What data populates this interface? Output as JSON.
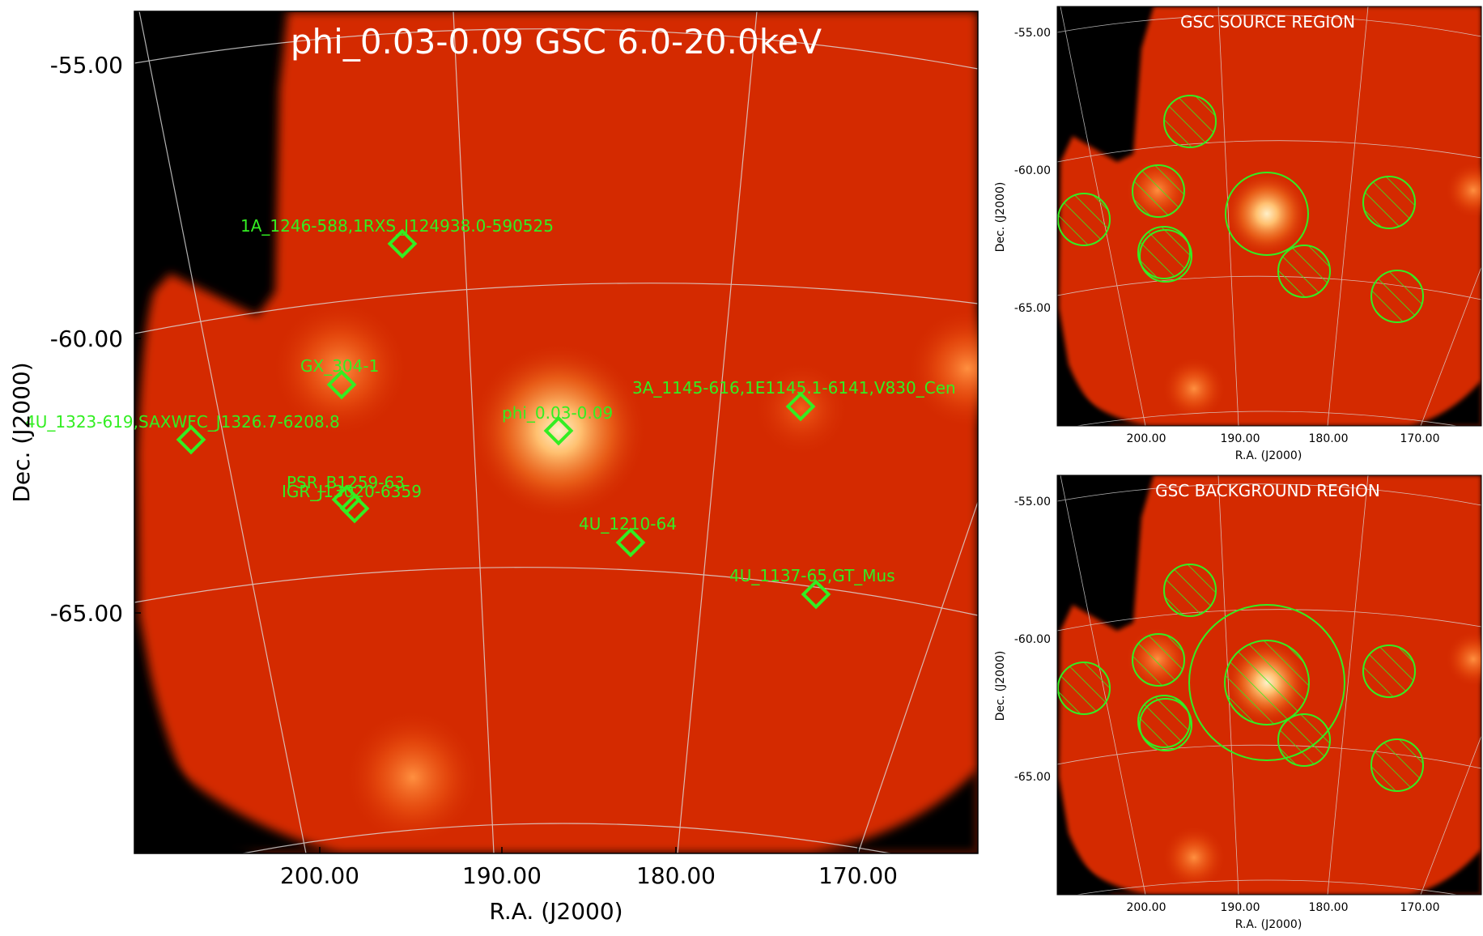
{
  "main_panel": {
    "title": "phi_0.03-0.09 GSC 6.0-20.0keV",
    "xlabel": "R.A. (J2000)",
    "ylabel": "Dec. (J2000)",
    "xticks": [
      "200.00",
      "190.00",
      "180.00",
      "170.00"
    ],
    "yticks": [
      "-55.00",
      "-60.00",
      "-65.00"
    ],
    "sources": [
      {
        "label": "1A_1246-588,1RXS_J124938.0-590525"
      },
      {
        "label": "GX_304-1"
      },
      {
        "label": "4U_1323-619,SAXWFC_J1326.7-6208.8"
      },
      {
        "label": "phi_0.03-0.09"
      },
      {
        "label": "3A_1145-616,1E1145.1-6141,V830_Cen"
      },
      {
        "label": "PSR_B1259-63"
      },
      {
        "label": "IGR_J13020-6359"
      },
      {
        "label": "4U_1210-64"
      },
      {
        "label": "4U_1137-65,GT_Mus"
      }
    ]
  },
  "source_panel": {
    "title": "GSC SOURCE REGION",
    "xlabel": "R.A. (J2000)",
    "ylabel": "Dec. (J2000)",
    "xticks": [
      "200.00",
      "190.00",
      "180.00",
      "170.00"
    ],
    "yticks": [
      "-55.00",
      "-60.00",
      "-65.00"
    ]
  },
  "background_panel": {
    "title": "GSC BACKGROUND REGION",
    "xlabel": "R.A. (J2000)",
    "ylabel": "Dec. (J2000)",
    "xticks": [
      "200.00",
      "190.00",
      "180.00",
      "170.00"
    ],
    "yticks": [
      "-55.00",
      "-60.00",
      "-65.00"
    ]
  },
  "colors": {
    "background": "#000000",
    "sky_map": "#d42a00",
    "bright_source": "#ffb060",
    "region_marker": "#33ee22",
    "grid": "#dddddd",
    "title_text": "#ffffff"
  }
}
